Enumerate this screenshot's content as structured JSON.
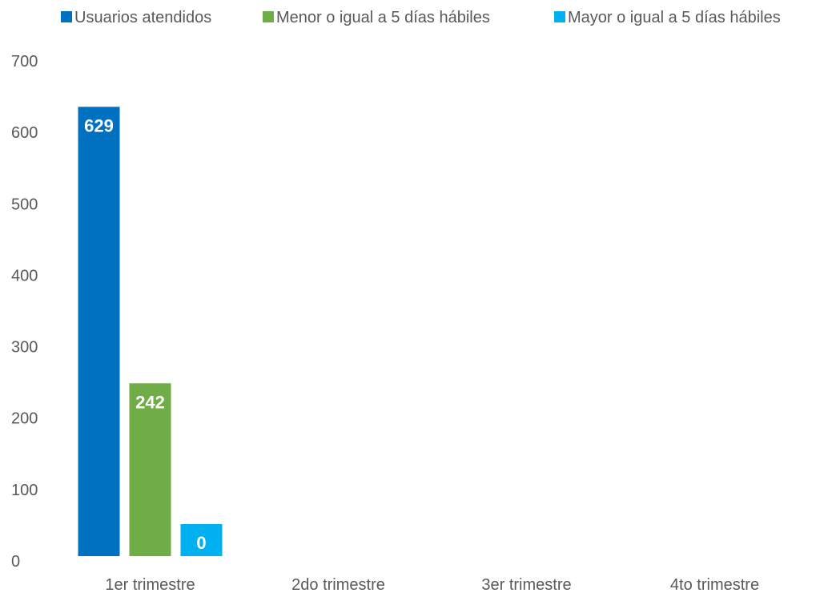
{
  "chart_data": {
    "type": "bar",
    "title": "",
    "xlabel": "",
    "ylabel": "",
    "categories": [
      "1er trimestre",
      "2do trimestre",
      "3er trimestre",
      "4to trimestre"
    ],
    "series": [
      {
        "name": "Usuarios atendidos",
        "color": "#0070c0",
        "values": [
          629,
          null,
          null,
          null
        ]
      },
      {
        "name": "Menor o igual a 5 días hábiles",
        "color": "#70ad47",
        "values": [
          242,
          null,
          null,
          null
        ]
      },
      {
        "name": "Mayor o igual a 5 días hábiles",
        "color": "#00b0f0",
        "values": [
          0,
          null,
          null,
          null
        ]
      }
    ],
    "ylim": [
      0,
      700
    ],
    "yticks": [
      0,
      100,
      200,
      300,
      400,
      500,
      600,
      700
    ],
    "grid": false,
    "legend": "top",
    "data_labels": true
  }
}
